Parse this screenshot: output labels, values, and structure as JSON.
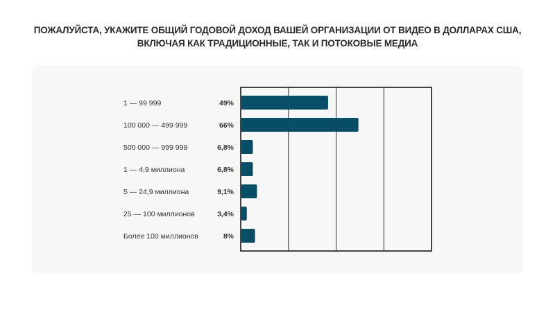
{
  "chart_data": {
    "type": "bar",
    "orientation": "horizontal",
    "title_lines": [
      "ПОЖАЛУЙСТА, УКАЖИТЕ ОБЩИЙ ГОДОВОЙ ДОХОД ВАШЕЙ ОРГАНИЗАЦИИ ОТ ВИДЕО В ДОЛЛАРАХ США,",
      "ВКЛЮЧАЯ КАК ТРАДИЦИОННЫЕ, ТАК И ПОТОКОВЫЕ МЕДИА"
    ],
    "categories": [
      "1 — 99 999",
      "100 000 — 499 999",
      "500 000 — 999 999",
      "1 — 4,9 миллиона",
      "5 — 24,9 миллиона",
      "25 — 100 миллионов",
      "Более 100 миллионов"
    ],
    "values": [
      49,
      66,
      6.8,
      6.8,
      9.1,
      3.4,
      8
    ],
    "value_labels": [
      "49%",
      "66%",
      "6,8%",
      "6,8%",
      "9,1%",
      "3,4%",
      "8%"
    ],
    "xlim": [
      0,
      107
    ],
    "grid": true,
    "bar_color": "#084c65"
  }
}
